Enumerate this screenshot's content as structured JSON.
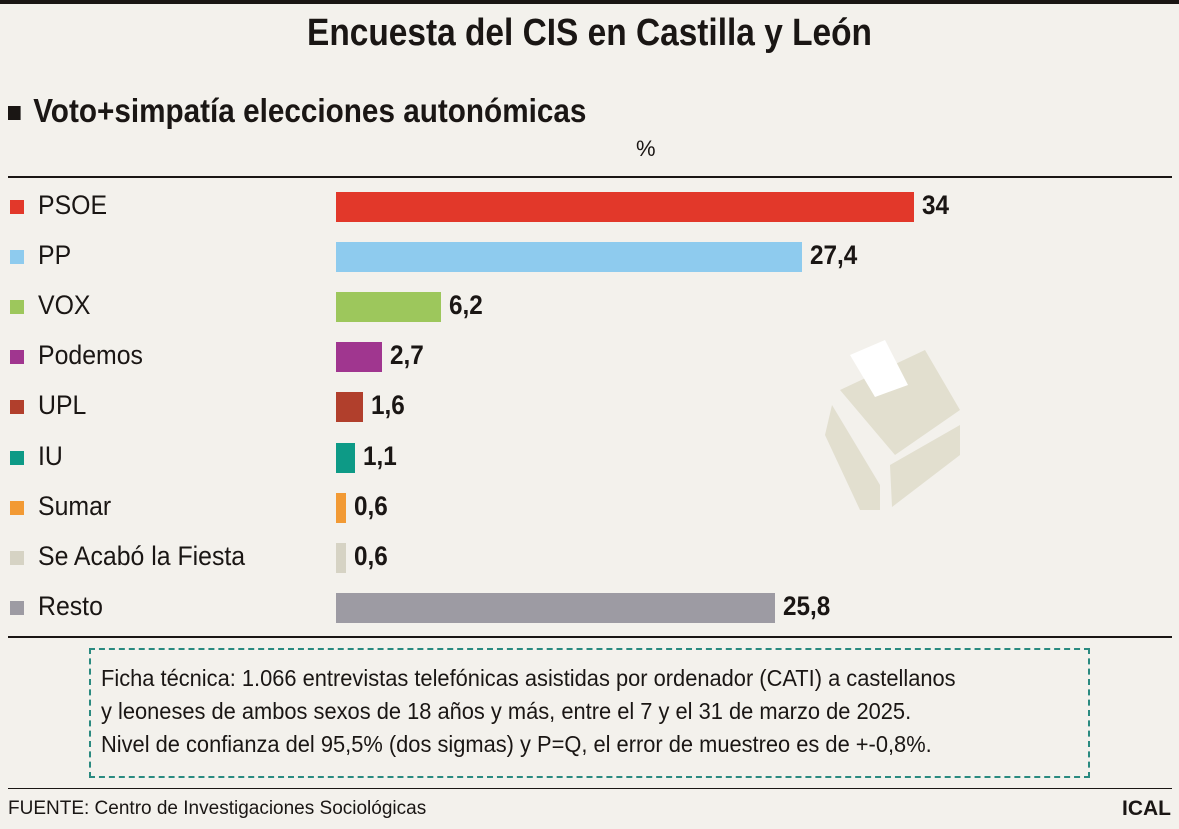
{
  "header": {
    "title": "Encuesta del CIS en Castilla y León",
    "subtitle": "Voto+simpatía elecciones autonómicas",
    "unit": "%"
  },
  "chart_data": {
    "type": "bar",
    "orientation": "horizontal",
    "title": "Voto+simpatía elecciones autonómicas",
    "xlabel": "%",
    "ylabel": "",
    "categories": [
      "PSOE",
      "PP",
      "VOX",
      "Podemos",
      "UPL",
      "IU",
      "Sumar",
      "Se Acabó la Fiesta",
      "Resto"
    ],
    "values": [
      34,
      27.4,
      6.2,
      2.7,
      1.6,
      1.1,
      0.6,
      0.6,
      25.8
    ],
    "value_labels": [
      "34",
      "27,4",
      "6,2",
      "2,7",
      "1,6",
      "1,1",
      "0,6",
      "0,6",
      "25,8"
    ],
    "colors": [
      "#e2382a",
      "#8ecbee",
      "#9dc75c",
      "#a0368f",
      "#b13f2c",
      "#0d9a86",
      "#f29a34",
      "#d6d3c4",
      "#9d9ba3"
    ],
    "xlim": [
      0,
      34
    ],
    "grid": false
  },
  "footer": {
    "note": [
      "Ficha técnica: 1.066 entrevistas telefónicas asistidas por ordenador (CATI) a castellanos",
      "y leoneses de ambos sexos de 18 años y más, entre el 7 y el 31 de marzo de 2025.",
      "Nivel de confianza del 95,5% (dos sigmas) y P=Q, el error de muestreo es de +-0,8%."
    ],
    "source": "FUENTE: Centro de Investigaciones Sociológicas",
    "logo": "ICAL"
  }
}
